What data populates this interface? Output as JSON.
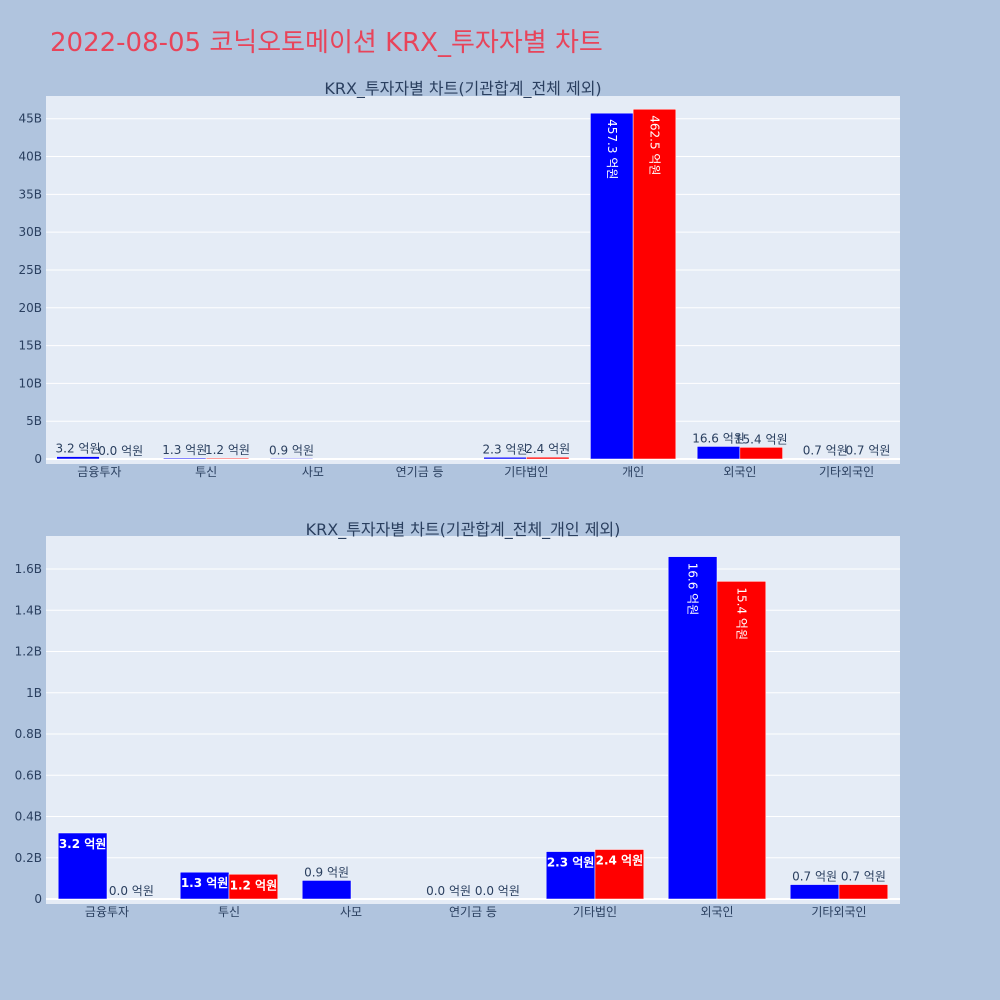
{
  "title": "2022-08-05 코닉오토메이션 KRX_투자자별 차트",
  "colors": {
    "buy": "#0000ff",
    "sell": "#ff0000",
    "plot_bg": "#e5ecf6",
    "page_bg": "#b0c4de",
    "title": "#e8445a"
  },
  "chart_data": [
    {
      "type": "bar",
      "title": "KRX_투자자별 차트(기관합계_전체 제외)",
      "categories": [
        "금융투자",
        "투신",
        "사모",
        "연기금 등",
        "기타법인",
        "개인",
        "외국인",
        "기타외국인"
      ],
      "series": [
        {
          "values": [
            0.32,
            0.13,
            0.09,
            0.0,
            0.23,
            45.73,
            1.66,
            0.07
          ],
          "labels": [
            "3.2 억원",
            "1.3 억원",
            "0.9 억원",
            "",
            "2.3 억원",
            "457.3 억원",
            "16.6 억원",
            "0.7 억원"
          ]
        },
        {
          "values": [
            0.0,
            0.12,
            0.0,
            0.0,
            0.24,
            46.25,
            1.54,
            0.07
          ],
          "labels": [
            "0.0 억원",
            "1.2 억원",
            "",
            "",
            "2.4 억원",
            "462.5 억원",
            "15.4 억원",
            "0.7 억원"
          ]
        }
      ],
      "ylim": [
        0,
        48
      ],
      "yticks": [
        0,
        5,
        10,
        15,
        20,
        25,
        30,
        35,
        40,
        45
      ],
      "ytick_labels": [
        "0",
        "5B",
        "10B",
        "15B",
        "20B",
        "25B",
        "30B",
        "35B",
        "40B",
        "45B"
      ],
      "grid": true
    },
    {
      "type": "bar",
      "title": "KRX_투자자별 차트(기관합계_전체_개인 제외)",
      "categories": [
        "금융투자",
        "투신",
        "사모",
        "연기금 등",
        "기타법인",
        "외국인",
        "기타외국인"
      ],
      "series": [
        {
          "values": [
            0.32,
            0.13,
            0.09,
            0.0,
            0.23,
            1.66,
            0.07
          ],
          "labels": [
            "3.2 억원",
            "1.3 억원",
            "0.9 억원",
            "0.0 억원",
            "2.3 억원",
            "16.6 억원",
            "0.7 억원"
          ]
        },
        {
          "values": [
            0.0,
            0.12,
            0.0,
            0.0,
            0.24,
            1.54,
            0.07
          ],
          "labels": [
            "0.0 억원",
            "1.2 억원",
            "",
            "0.0 억원",
            "2.4 억원",
            "15.4 억원",
            "0.7 억원"
          ]
        }
      ],
      "ylim": [
        0,
        1.76
      ],
      "yticks": [
        0,
        0.2,
        0.4,
        0.6,
        0.8,
        1.0,
        1.2,
        1.4,
        1.6
      ],
      "ytick_labels": [
        "0",
        "0.2B",
        "0.4B",
        "0.6B",
        "0.8B",
        "1B",
        "1.2B",
        "1.4B",
        "1.6B"
      ],
      "grid": true
    }
  ]
}
